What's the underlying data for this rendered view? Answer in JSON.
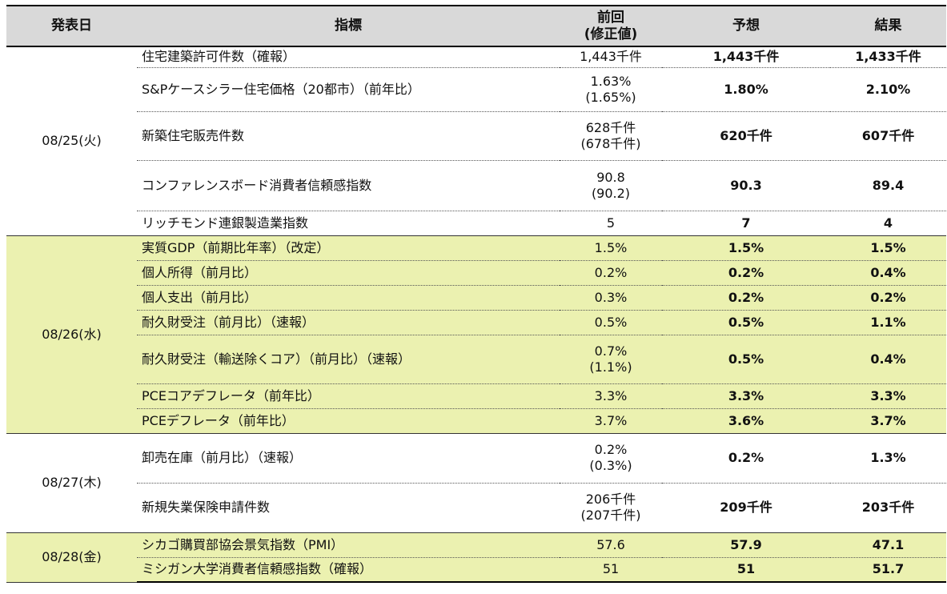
{
  "header": {
    "date": "発表日",
    "indicator": "指標",
    "previous_line1": "前回",
    "previous_line2": "(修正値)",
    "forecast": "予想",
    "result": "結果"
  },
  "groups": [
    {
      "date": "08/25(火)",
      "rows": [
        {
          "indicator": "住宅建築許可件数（確報）",
          "previous": "1,443千件",
          "revised": "",
          "forecast": "1,443千件",
          "result": "1,433千件"
        },
        {
          "indicator": "S&Pケースシラー住宅価格（20都市）（前年比）",
          "previous": "1.63%",
          "revised": "(1.65%)",
          "forecast": "1.80%",
          "result": "2.10%"
        },
        {
          "indicator": "新築住宅販売件数",
          "previous": "628千件",
          "revised": "(678千件)",
          "forecast": "620千件",
          "result": "607千件"
        },
        {
          "indicator": "コンファレンスボード消費者信頼感指数",
          "previous": "90.8",
          "revised": "(90.2)",
          "forecast": "90.3",
          "result": "89.4"
        },
        {
          "indicator": "リッチモンド連銀製造業指数",
          "previous": "5",
          "revised": "",
          "forecast": "7",
          "result": "4"
        }
      ]
    },
    {
      "date": "08/26(水)",
      "rows": [
        {
          "indicator": "実質GDP（前期比年率）（改定）",
          "previous": "1.5%",
          "revised": "",
          "forecast": "1.5%",
          "result": "1.5%"
        },
        {
          "indicator": "個人所得（前月比）",
          "previous": "0.2%",
          "revised": "",
          "forecast": "0.2%",
          "result": "0.4%"
        },
        {
          "indicator": "個人支出（前月比）",
          "previous": "0.3%",
          "revised": "",
          "forecast": "0.2%",
          "result": "0.2%"
        },
        {
          "indicator": "耐久財受注（前月比）（速報）",
          "previous": "0.5%",
          "revised": "",
          "forecast": "0.5%",
          "result": "1.1%"
        },
        {
          "indicator": "耐久財受注（輸送除くコア）（前月比）（速報）",
          "previous": "0.7%",
          "revised": "(1.1%)",
          "forecast": "0.5%",
          "result": "0.4%"
        },
        {
          "indicator": "PCEコアデフレータ（前年比）",
          "previous": "3.3%",
          "revised": "",
          "forecast": "3.3%",
          "result": "3.3%"
        },
        {
          "indicator": "PCEデフレータ（前年比）",
          "previous": "3.7%",
          "revised": "",
          "forecast": "3.6%",
          "result": "3.7%"
        }
      ]
    },
    {
      "date": "08/27(木)",
      "rows": [
        {
          "indicator": "卸売在庫（前月比）（速報）",
          "previous": "0.2%",
          "revised": "(0.3%)",
          "forecast": "0.2%",
          "result": "1.3%"
        },
        {
          "indicator": "新規失業保険申請件数",
          "previous": "206千件",
          "revised": "(207千件)",
          "forecast": "209千件",
          "result": "203千件"
        }
      ]
    },
    {
      "date": "08/28(金)",
      "rows": [
        {
          "indicator": "シカゴ購買部協会景気指数（PMI）",
          "previous": "57.6",
          "revised": "",
          "forecast": "57.9",
          "result": "47.1"
        },
        {
          "indicator": "ミシガン大学消費者信頼感指数（確報）",
          "previous": "51",
          "revised": "",
          "forecast": "51",
          "result": "51.7"
        }
      ]
    }
  ],
  "colors": {
    "header_bg": "#d9d9d9",
    "highlight_bg": "#ebf1b0"
  }
}
